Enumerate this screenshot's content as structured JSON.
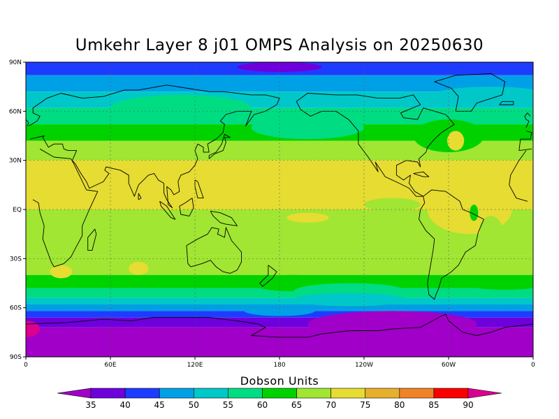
{
  "title": "Umkehr Layer 8 j01 OMPS Analysis on 20250630",
  "colorbar": {
    "title": "Dobson Units",
    "labels": [
      "35",
      "40",
      "45",
      "50",
      "55",
      "60",
      "65",
      "70",
      "75",
      "80",
      "85",
      "90"
    ],
    "colors": [
      "#a000c8",
      "#6e00dc",
      "#1e3cff",
      "#00a0e6",
      "#00c8c8",
      "#00dc82",
      "#00d200",
      "#a0e632",
      "#e6dc32",
      "#e6af2d",
      "#f08228",
      "#fa0000",
      "#dc0090"
    ]
  },
  "axes": {
    "y_ticks": [
      "90N",
      "60N",
      "30N",
      "EQ",
      "30S",
      "60S",
      "90S"
    ],
    "x_ticks": [
      "0",
      "60E",
      "120E",
      "180",
      "120W",
      "60W",
      "0"
    ]
  },
  "bands": [
    {
      "lat_top": 90,
      "lat_bot": 82,
      "color": "#1e3cff"
    },
    {
      "lat_top": 82,
      "lat_bot": 72,
      "color": "#00a0e6"
    },
    {
      "lat_top": 72,
      "lat_bot": 62,
      "color": "#00c8c8"
    },
    {
      "lat_top": 62,
      "lat_bot": 52,
      "color": "#00dc82"
    },
    {
      "lat_top": 52,
      "lat_bot": 42,
      "color": "#00d200"
    },
    {
      "lat_top": 42,
      "lat_bot": 30,
      "color": "#a0e632"
    },
    {
      "lat_top": 30,
      "lat_bot": 0,
      "color": "#e6dc32"
    },
    {
      "lat_top": 0,
      "lat_bot": -28,
      "color": "#a0e632"
    },
    {
      "lat_top": -28,
      "lat_bot": -40,
      "color": "#a0e632"
    },
    {
      "lat_top": -40,
      "lat_bot": -48,
      "color": "#00d200"
    },
    {
      "lat_top": -48,
      "lat_bot": -54,
      "color": "#00dc82"
    },
    {
      "lat_top": -54,
      "lat_bot": -58,
      "color": "#00c8c8"
    },
    {
      "lat_top": -58,
      "lat_bot": -62,
      "color": "#00a0e6"
    },
    {
      "lat_top": -62,
      "lat_bot": -66,
      "color": "#1e3cff"
    },
    {
      "lat_top": -66,
      "lat_bot": -72,
      "color": "#6e00dc"
    },
    {
      "lat_top": -72,
      "lat_bot": -90,
      "color": "#a000c8"
    }
  ]
}
